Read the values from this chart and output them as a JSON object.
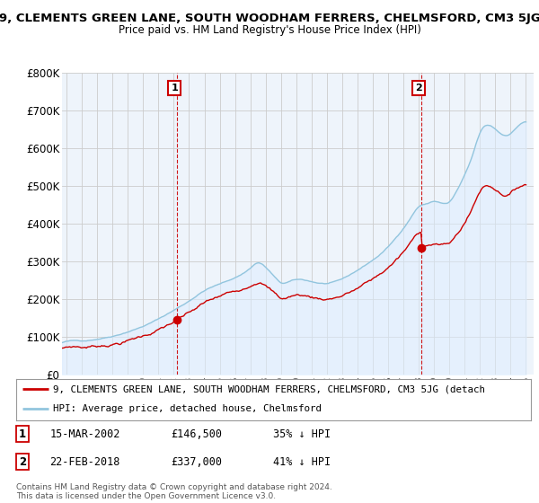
{
  "title": "9, CLEMENTS GREEN LANE, SOUTH WOODHAM FERRERS, CHELMSFORD, CM3 5JG",
  "subtitle": "Price paid vs. HM Land Registry's House Price Index (HPI)",
  "legend_line1": "9, CLEMENTS GREEN LANE, SOUTH WOODHAM FERRERS, CHELMSFORD, CM3 5JG (detach",
  "legend_line2": "HPI: Average price, detached house, Chelmsford",
  "footnote": "Contains HM Land Registry data © Crown copyright and database right 2024.\nThis data is licensed under the Open Government Licence v3.0.",
  "hpi_color": "#92c5de",
  "hpi_fill": "#ddeeff",
  "price_color": "#cc0000",
  "vline_color": "#cc0000",
  "background_color": "#ffffff",
  "grid_color": "#cccccc",
  "ylim": [
    0,
    800000
  ],
  "yticks": [
    0,
    100000,
    200000,
    300000,
    400000,
    500000,
    600000,
    700000,
    800000
  ],
  "xlim_start": 1994.7,
  "xlim_end": 2025.5,
  "trans1_x": 2002.21,
  "trans1_y": 146500,
  "trans2_x": 2018.14,
  "trans2_y": 337000
}
